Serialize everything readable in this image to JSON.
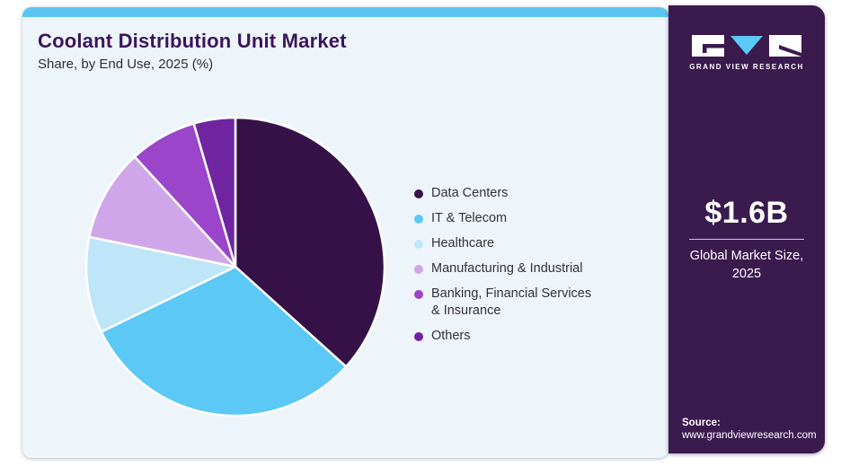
{
  "card": {
    "title": "Coolant Distribution Unit Market",
    "subtitle": "Share, by End Use, 2025 (%)",
    "background": "#eef5fa",
    "top_bar_color": "#5bc5ef",
    "title_color": "#3b155c"
  },
  "chart_data": {
    "type": "pie",
    "title": "Coolant Distribution Unit Market Share, by End Use, 2025 (%)",
    "unit": "%",
    "start_angle_deg": 0,
    "direction": "clockwise",
    "legend_position": "right",
    "categories": [
      "Data Centers",
      "IT & Telecom",
      "Healthcare",
      "Manufacturing & Industrial",
      "Banking, Financial Services & Insurance",
      "Others"
    ],
    "values": [
      36.7,
      31.1,
      10.4,
      10.0,
      7.3,
      4.5
    ],
    "colors": [
      "#361148",
      "#5bc8f5",
      "#bee5f8",
      "#cfa6e9",
      "#9b45cb",
      "#70249f"
    ],
    "legend_lines": [
      [
        "Data Centers"
      ],
      [
        "IT & Telecom"
      ],
      [
        "Healthcare"
      ],
      [
        "Manufacturing & Industrial"
      ],
      [
        "Banking, Financial Services",
        "& Insurance"
      ],
      [
        "Others"
      ]
    ],
    "slice_gap_color": "#ffffff"
  },
  "sidebar": {
    "background": "#3b1a4e",
    "logo": {
      "brand": "GRAND VIEW RESEARCH",
      "triangle_color": "#5bc8f5"
    },
    "market_size": {
      "value": "$1.6B",
      "label_line1": "Global Market Size,",
      "label_line2": "2025"
    },
    "source": {
      "label": "Source:",
      "url": "www.grandviewresearch.com"
    }
  }
}
